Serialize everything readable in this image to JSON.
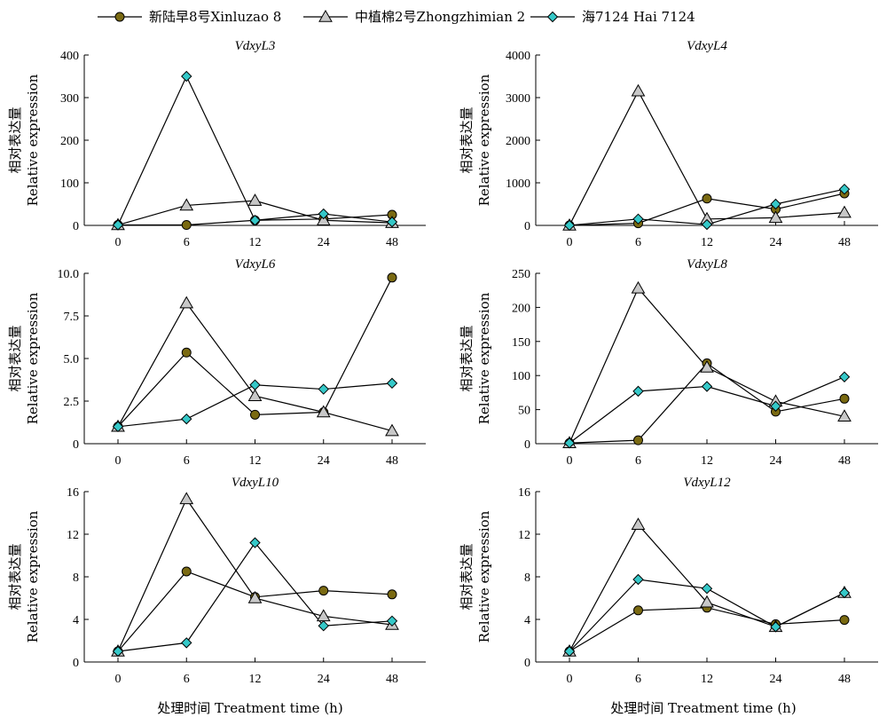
{
  "chart_data": {
    "type": "line",
    "legend": {
      "placement": "top",
      "entries": [
        {
          "label": "新陆早8号Xinluzao 8",
          "marker": "circle",
          "color": "#7a6a12"
        },
        {
          "label": "中植棉2号Zhongzhimian 2",
          "marker": "triangle",
          "color": "#c8c8c8"
        },
        {
          "label": "海7124 Hai 7124",
          "marker": "diamond",
          "color": "#35c8c8"
        }
      ]
    },
    "xlabel": "处理时间 Treatment time (h)",
    "ylabel_line1": "相对表达量",
    "ylabel_line2": "Relative expression",
    "x_categories": [
      "0",
      "6",
      "12",
      "24",
      "48"
    ],
    "panels": [
      {
        "title": "VdxyL3",
        "ylim": [
          0,
          400
        ],
        "yticks": [
          0,
          100,
          200,
          300,
          400
        ],
        "ytick_labels": [
          "0",
          "100",
          "200",
          "300",
          "400"
        ],
        "series": [
          {
            "values": [
              1,
              1,
              12,
              15,
              25
            ]
          },
          {
            "values": [
              1,
              47,
              58,
              12,
              6
            ]
          },
          {
            "values": [
              1,
              350,
              12,
              27,
              8
            ]
          }
        ]
      },
      {
        "title": "VdxyL4",
        "ylim": [
          0,
          4000
        ],
        "yticks": [
          0,
          1000,
          2000,
          3000,
          4000
        ],
        "ytick_labels": [
          "0",
          "1000",
          "2000",
          "3000",
          "4000"
        ],
        "series": [
          {
            "values": [
              1,
              50,
              630,
              380,
              750
            ]
          },
          {
            "values": [
              1,
              3150,
              150,
              180,
              300
            ]
          },
          {
            "values": [
              1,
              150,
              20,
              500,
              850
            ]
          }
        ]
      },
      {
        "title": "VdxyL6",
        "ylim": [
          0,
          10
        ],
        "yticks": [
          0,
          2.5,
          5,
          7.5,
          10
        ],
        "ytick_labels": [
          "0",
          "2.5",
          "5.0",
          "7.5",
          "10.0"
        ],
        "series": [
          {
            "values": [
              1,
              5.35,
              1.7,
              1.85,
              9.75
            ]
          },
          {
            "values": [
              1,
              8.25,
              2.8,
              1.85,
              0.75
            ]
          },
          {
            "values": [
              1,
              1.45,
              3.45,
              3.2,
              3.55
            ]
          }
        ]
      },
      {
        "title": "VdxyL8",
        "ylim": [
          0,
          250
        ],
        "yticks": [
          0,
          50,
          100,
          150,
          200,
          250
        ],
        "ytick_labels": [
          "0",
          "50",
          "100",
          "150",
          "200",
          "250"
        ],
        "series": [
          {
            "values": [
              1,
              5,
              118,
              47,
              66
            ]
          },
          {
            "values": [
              1,
              228,
              112,
              62,
              40
            ]
          },
          {
            "values": [
              1,
              77,
              84,
              55,
              98
            ]
          }
        ]
      },
      {
        "title": "VdxyL10",
        "ylim": [
          0,
          16
        ],
        "yticks": [
          0,
          4,
          8,
          12,
          16
        ],
        "ytick_labels": [
          "0",
          "4",
          "8",
          "12",
          "16"
        ],
        "series": [
          {
            "values": [
              1,
              8.5,
              6.1,
              6.7,
              6.35
            ]
          },
          {
            "values": [
              1,
              15.3,
              6.0,
              4.3,
              3.5
            ]
          },
          {
            "values": [
              1,
              1.8,
              11.2,
              3.4,
              3.85
            ]
          }
        ]
      },
      {
        "title": "VdxyL12",
        "ylim": [
          0,
          16
        ],
        "yticks": [
          0,
          4,
          8,
          12,
          16
        ],
        "ytick_labels": [
          "0",
          "4",
          "8",
          "12",
          "16"
        ],
        "series": [
          {
            "values": [
              1,
              4.85,
              5.1,
              3.55,
              3.95
            ]
          },
          {
            "values": [
              1,
              12.9,
              5.6,
              3.3,
              6.5
            ]
          },
          {
            "values": [
              1,
              7.75,
              6.9,
              3.3,
              6.5
            ]
          }
        ]
      }
    ]
  }
}
